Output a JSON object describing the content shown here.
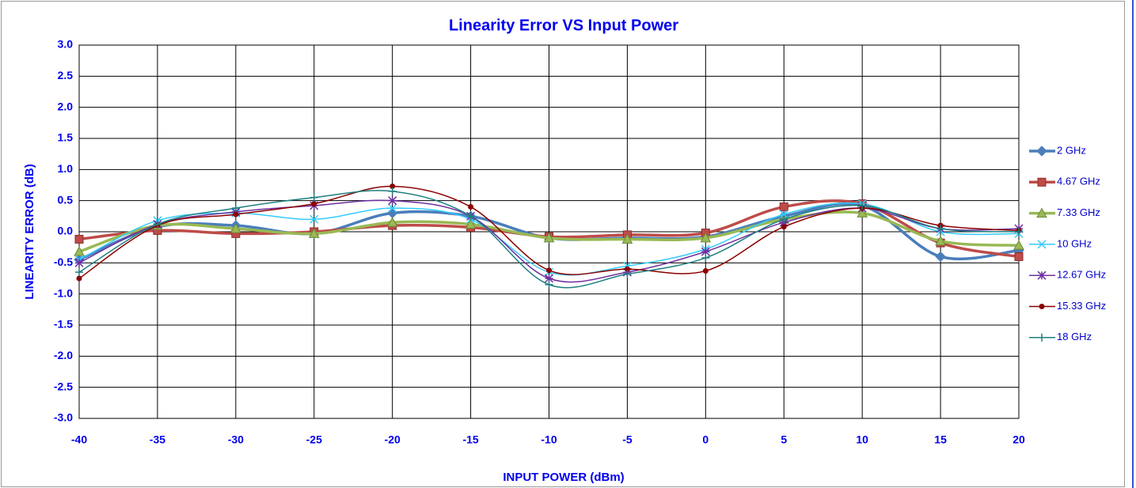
{
  "chart_data": {
    "type": "line",
    "title": "Linearity Error VS Input Power",
    "x_label": "INPUT POWER (dBm)",
    "y_label": "LINEARITY ERROR (dB)",
    "x": [
      -40,
      -35,
      -30,
      -25,
      -20,
      -15,
      -10,
      -5,
      0,
      5,
      10,
      15,
      20
    ],
    "xlim": [
      -40,
      20
    ],
    "xticks": [
      -40,
      -35,
      -30,
      -25,
      -20,
      -15,
      -10,
      -5,
      0,
      5,
      10,
      15,
      20
    ],
    "ylim": [
      -3,
      3
    ],
    "yticks": [
      {
        "value": -3,
        "label": "-3.0"
      },
      -2.5,
      {
        "value": -2,
        "label": "-2.0"
      },
      -1.5,
      {
        "value": -1,
        "label": "-1.0"
      },
      -0.5,
      {
        "value": 0,
        "label": "0.0"
      },
      0.5,
      {
        "value": 1,
        "label": "1.0"
      },
      1.5,
      {
        "value": 2,
        "label": "2.0"
      },
      2.5,
      {
        "value": 3,
        "label": "3.0"
      }
    ],
    "grid": true,
    "legend": "right",
    "series": [
      {
        "name": "2 GHz",
        "color": "#4a7ebb",
        "marker": "diamond",
        "values": [
          -0.45,
          0.08,
          0.1,
          -0.03,
          0.3,
          0.25,
          -0.1,
          -0.1,
          -0.08,
          0.25,
          0.42,
          -0.4,
          -0.3
        ]
      },
      {
        "name": "4.67 GHz",
        "color": "#be4b48",
        "marker": "square",
        "values": [
          -0.12,
          0.02,
          -0.03,
          0.0,
          0.1,
          0.07,
          -0.08,
          -0.05,
          -0.02,
          0.4,
          0.45,
          -0.18,
          -0.4
        ]
      },
      {
        "name": "7.33 GHz",
        "color": "#98b954",
        "marker": "triangle",
        "values": [
          -0.32,
          0.1,
          0.05,
          -0.03,
          0.15,
          0.12,
          -0.1,
          -0.12,
          -0.1,
          0.2,
          0.3,
          -0.15,
          -0.22
        ]
      },
      {
        "name": "10 GHz",
        "color": "#33ccff",
        "marker": "x",
        "values": [
          -0.45,
          0.18,
          0.3,
          0.2,
          0.38,
          0.2,
          -0.65,
          -0.55,
          -0.28,
          0.28,
          0.45,
          0.0,
          -0.03
        ]
      },
      {
        "name": "12.67 GHz",
        "color": "#7030a0",
        "marker": "star",
        "values": [
          -0.5,
          0.12,
          0.32,
          0.42,
          0.5,
          0.25,
          -0.75,
          -0.65,
          -0.32,
          0.15,
          0.38,
          0.05,
          0.05
        ]
      },
      {
        "name": "15.33 GHz",
        "color": "#8b0000",
        "marker": "circle",
        "values": [
          -0.75,
          0.1,
          0.28,
          0.45,
          0.73,
          0.4,
          -0.62,
          -0.6,
          -0.63,
          0.08,
          0.38,
          0.1,
          0.02
        ]
      },
      {
        "name": "18 GHz",
        "color": "#1e7f7f",
        "marker": "plus",
        "values": [
          -0.65,
          0.12,
          0.38,
          0.55,
          0.65,
          0.25,
          -0.85,
          -0.68,
          -0.42,
          0.2,
          0.42,
          0.05,
          0.0
        ]
      }
    ]
  }
}
